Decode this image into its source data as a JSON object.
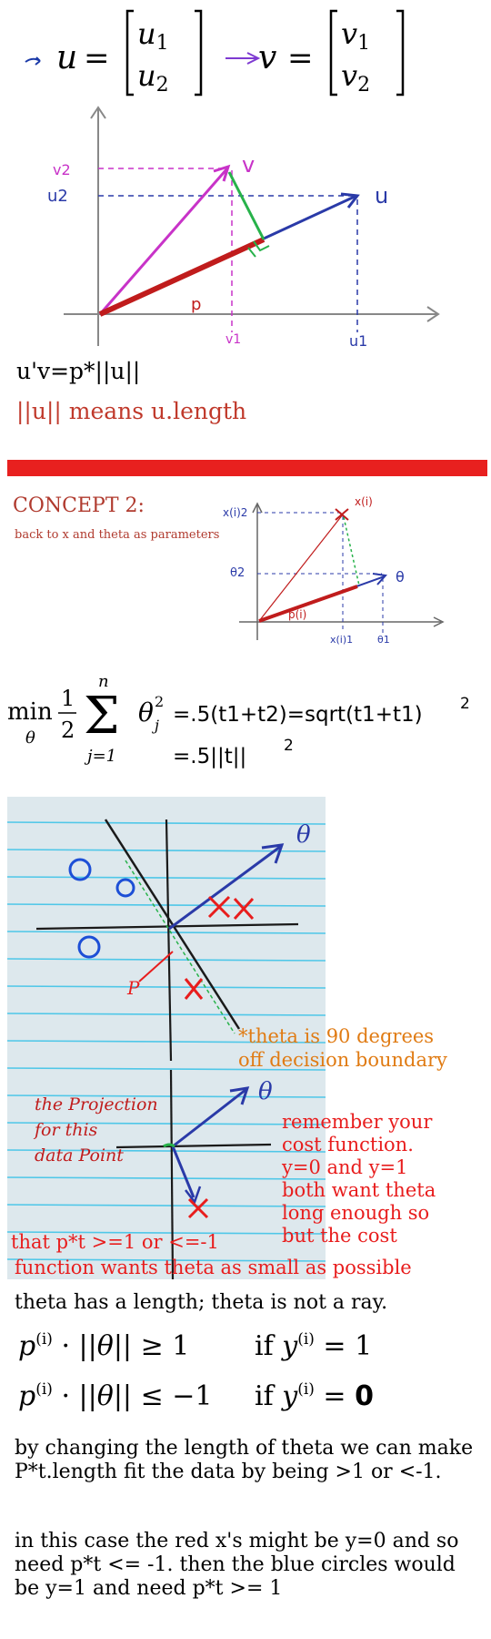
{
  "top_vectors": {
    "u_symbol": "u",
    "u_components": [
      "u1",
      "u2"
    ],
    "v_symbol": "v",
    "v_components": [
      "v1",
      "v2"
    ]
  },
  "diagram1": {
    "labels": {
      "v2": "v2",
      "u2": "u2",
      "v": "v",
      "u": "u",
      "p": "p",
      "v1": "v1",
      "u1": "u1"
    }
  },
  "notes1": {
    "line1": "u'v=p*||u||",
    "line2": "||u|| means u.length"
  },
  "concept": {
    "title": "CONCEPT 2:",
    "subtitle": "back to x and theta as parameters"
  },
  "diagram2": {
    "labels": {
      "x2": "x(i)2",
      "x": "x(i)",
      "theta2": "θ2",
      "theta": "θ",
      "p": "p(i)",
      "x1": "x(i)1",
      "theta1": "θ1"
    }
  },
  "cost_eq": {
    "min": "min",
    "theta_sub": "θ",
    "half_num": "1",
    "half_den": "2",
    "sum_top": "n",
    "sum_bottom": "j=1",
    "term": "θ",
    "term_sub": "j",
    "term_sup": "2",
    "rhs1": "=.5(t1+t2)=sqrt(t1+t1)",
    "rhs1_sup": "2",
    "rhs2": "=.5||t||",
    "rhs2_sup": "2"
  },
  "notebook": {
    "theta_label": "θ",
    "p_label": "P",
    "theta_label2": "θ",
    "projection_note": [
      "the Projection",
      "for this",
      "data Point"
    ],
    "note_orange": [
      "*theta is 90 degrees",
      "off decision boundary"
    ],
    "note_red": [
      "remember your",
      "cost function.",
      "y=0 and y=1",
      "both want theta",
      "long enough so",
      "but the cost"
    ],
    "note_bottom1": "that p*t >=1 or <=-1",
    "note_bottom2": "function wants theta as small as possible"
  },
  "bottom": {
    "line_theta": "theta has a length; theta is not a ray.",
    "ineq1_left": "p(i) · ||θ|| ≥ 1",
    "ineq1_right": "if y(i) = 1",
    "ineq2_left": "p(i) · ||θ|| ≤ −1",
    "ineq2_right_pre": "if y(i) =",
    "ineq2_right_val": "0",
    "para1": "by changing the length of theta we can make P*t.length fit the data by being >1 or <-1.",
    "para2": "in this case the red x's might be y=0 and so need p*t <= -1. then the blue circles would be y=1 and need p*t >= 1"
  },
  "colors": {
    "magenta": "#c833c8",
    "green": "#27b24a",
    "blue": "#2a3aa8",
    "red": "#c01c1c",
    "orange": "#e07b13",
    "bar_red": "#e8201f"
  }
}
